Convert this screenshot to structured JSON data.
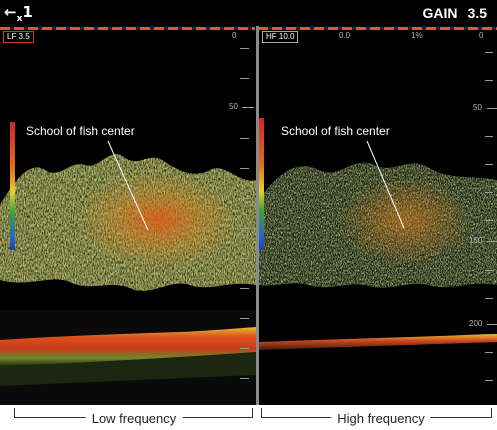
{
  "topbar": {
    "back_arrow": "←",
    "back_multiplier": "1",
    "gain_label": "GAIN",
    "gain_value": "3.5"
  },
  "left_pane": {
    "freq_tag": "LF 3.5",
    "scale_top": "0",
    "scale_marks": [
      "50"
    ],
    "annotation": "School of fish center"
  },
  "right_pane": {
    "freq_tag": "HF 10.0",
    "scale_top_a": "0.0",
    "scale_top_b": "1%",
    "scale_top_c": "0",
    "scale_marks": [
      "50",
      "150",
      "200"
    ],
    "annotation": "School of fish center"
  },
  "captions": {
    "low": "Low frequency",
    "high": "High frequency"
  },
  "colors": {
    "echo_strong": "#e0501c",
    "echo_mid": "#c9a02a",
    "echo_weak": "#4f8a3a",
    "seabed": "#d14b1f",
    "accent_dash": "#e85a1c"
  },
  "icons": {
    "back": "back-arrow-icon"
  }
}
